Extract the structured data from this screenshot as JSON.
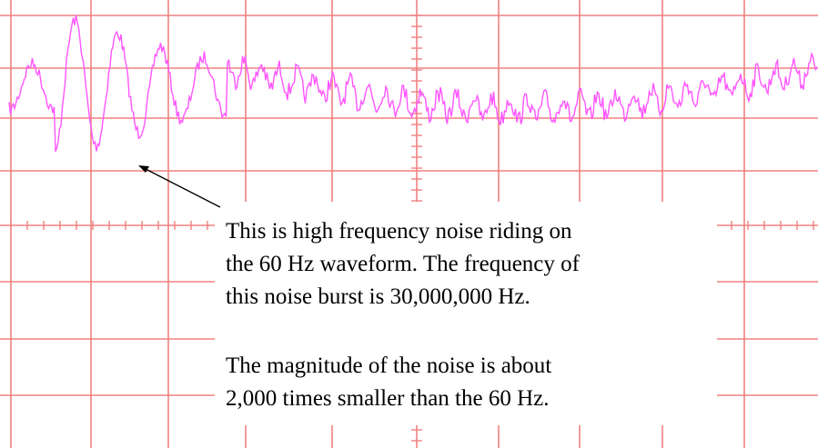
{
  "annotation": {
    "paragraphs": [
      [
        "This is high frequency noise riding on",
        "the 60 Hz waveform.  The frequency of",
        "this noise burst is 30,000,000 Hz."
      ],
      [
        "The magnitude of the noise is about",
        "2,000 times smaller than the 60 Hz."
      ]
    ]
  }
}
